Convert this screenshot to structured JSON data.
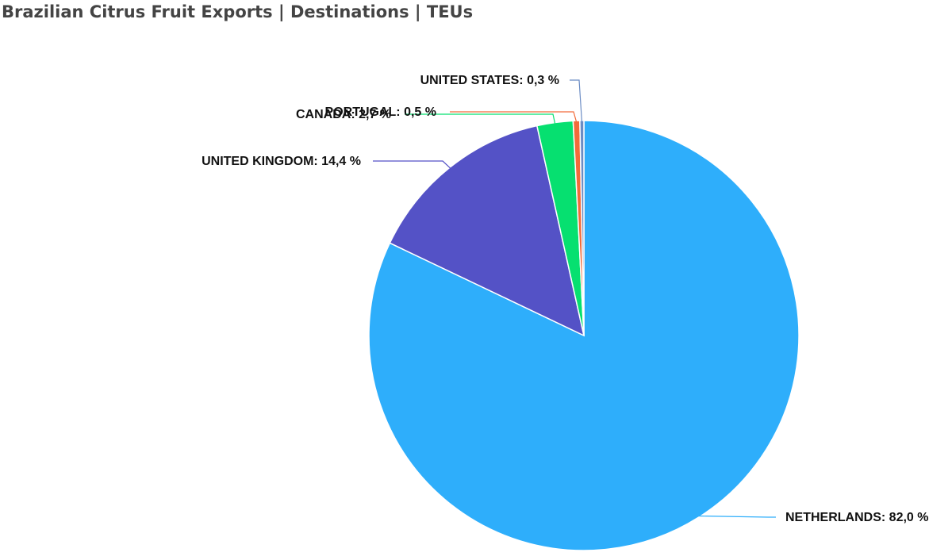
{
  "chart_data": {
    "type": "pie",
    "title": "Brazilian Citrus Fruit Exports | Destinations | TEUs",
    "categories": [
      "NETHERLANDS",
      "UNITED KINGDOM",
      "CANADA",
      "PORTUGAL",
      "UNITED STATES"
    ],
    "values": [
      82.0,
      14.4,
      2.7,
      0.5,
      0.3
    ],
    "value_labels": [
      "NETHERLANDS: 82,0 %",
      "UNITED KINGDOM: 14,4 %",
      "CANADA: 2,7 %",
      "PORTUGAL: 0,5 %",
      "UNITED STATES: 0,3 %"
    ],
    "colors": [
      "#2eaefb",
      "#5452c6",
      "#06e070",
      "#f26b3a",
      "#6b8cc4"
    ]
  }
}
